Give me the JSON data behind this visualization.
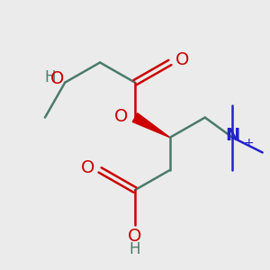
{
  "bg_color": "#ebebeb",
  "bond_color": "#4a7a6a",
  "red_color": "#cc0000",
  "blue_color": "#2222cc",
  "bond_width": 1.8,
  "font_size_large": 14,
  "font_size_small": 12,
  "xlim": [
    0.3,
    5.5
  ],
  "ylim": [
    0.5,
    5.8
  ]
}
